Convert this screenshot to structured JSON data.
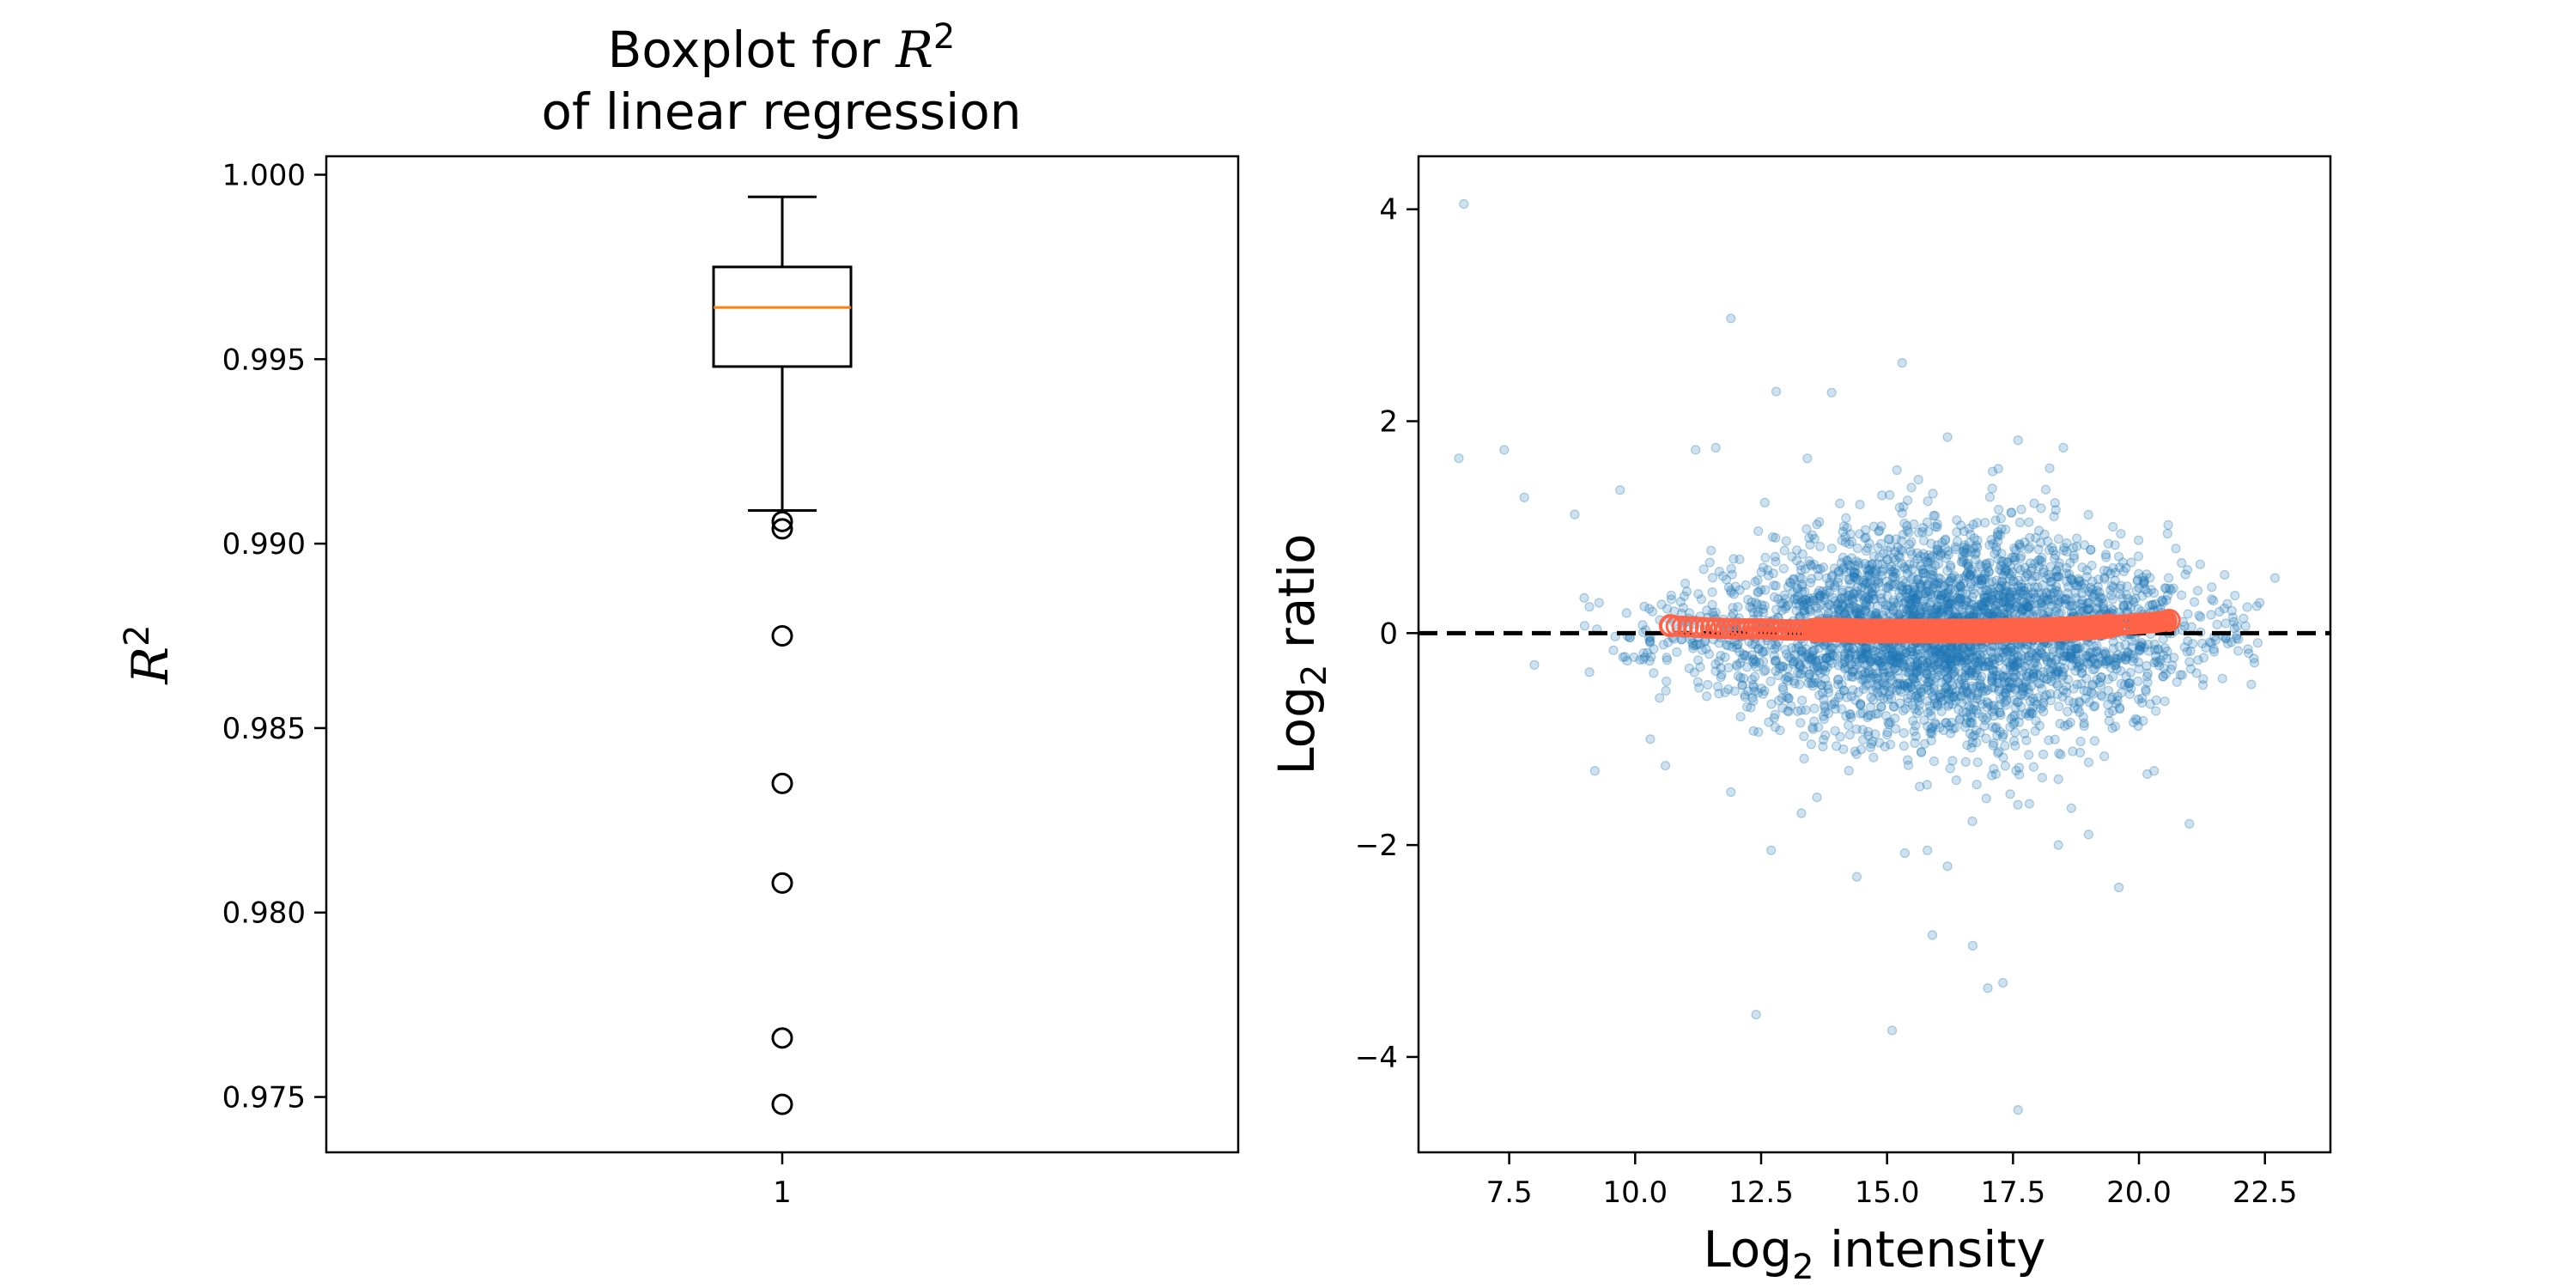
{
  "chart_data": [
    {
      "type": "box",
      "title_line1_prefix": "Boxplot for ",
      "title_line1_var": "R",
      "title_line1_sup": "2",
      "title_line2": "of linear regression",
      "ylabel_var": "R",
      "ylabel_sup": "2",
      "categories": [
        "1"
      ],
      "ylim": [
        0.9735,
        1.0005
      ],
      "yticks": [
        0.975,
        0.98,
        0.985,
        0.99,
        0.995,
        1.0
      ],
      "ytick_labels": [
        "0.975",
        "0.980",
        "0.985",
        "0.990",
        "0.995",
        "1.000"
      ],
      "box": {
        "whisker_low": 0.9909,
        "q1": 0.9948,
        "median": 0.9964,
        "q3": 0.9975,
        "whisker_high": 0.9994
      },
      "fliers": [
        0.9906,
        0.9904,
        0.9875,
        0.9835,
        0.9808,
        0.9766,
        0.9748
      ],
      "colors": {
        "box": "#000000",
        "median": "#ff7f0e"
      }
    },
    {
      "type": "scatter",
      "xlabel_prefix": "Log",
      "xlabel_sub": "2",
      "xlabel_suffix": " intensity",
      "ylabel_prefix": "Log",
      "ylabel_sub": "2",
      "ylabel_suffix": " ratio",
      "xlim": [
        5.7,
        23.8
      ],
      "ylim": [
        -4.9,
        4.5
      ],
      "xticks": [
        7.5,
        10.0,
        12.5,
        15.0,
        17.5,
        20.0,
        22.5
      ],
      "xtick_labels": [
        "7.5",
        "10.0",
        "12.5",
        "15.0",
        "17.5",
        "20.0",
        "22.5"
      ],
      "yticks": [
        -4,
        -2,
        0,
        2,
        4
      ],
      "ytick_labels": [
        "−4",
        "−2",
        "0",
        "2",
        "4"
      ],
      "reference_line": {
        "y": 0,
        "style": "dashed",
        "color": "#000000"
      },
      "colors": {
        "points": "#1f77b4",
        "trend": "#ff6347"
      },
      "outlier_points": [
        [
          6.6,
          4.05
        ],
        [
          11.9,
          2.97
        ],
        [
          15.3,
          2.55
        ],
        [
          12.8,
          2.28
        ],
        [
          13.9,
          2.27
        ],
        [
          6.5,
          1.65
        ],
        [
          7.4,
          1.73
        ],
        [
          11.2,
          1.73
        ],
        [
          11.6,
          1.75
        ],
        [
          17.6,
          1.82
        ],
        [
          18.5,
          1.75
        ],
        [
          16.2,
          1.85
        ],
        [
          7.8,
          1.28
        ],
        [
          9.7,
          1.35
        ],
        [
          8.8,
          1.12
        ],
        [
          21.7,
          0.55
        ],
        [
          22.7,
          0.52
        ],
        [
          8.0,
          -0.3
        ],
        [
          9.2,
          -1.3
        ],
        [
          10.6,
          -1.25
        ],
        [
          12.7,
          -2.05
        ],
        [
          15.8,
          -2.05
        ],
        [
          16.2,
          -2.2
        ],
        [
          18.4,
          -2.0
        ],
        [
          19.6,
          -2.4
        ],
        [
          21.0,
          -1.8
        ],
        [
          14.4,
          -2.3
        ],
        [
          15.9,
          -2.85
        ],
        [
          16.7,
          -2.95
        ],
        [
          17.0,
          -3.35
        ],
        [
          17.3,
          -3.3
        ],
        [
          12.4,
          -3.6
        ],
        [
          15.1,
          -3.75
        ],
        [
          17.6,
          -4.5
        ],
        [
          10.3,
          -1.0
        ],
        [
          19.0,
          -1.9
        ],
        [
          13.3,
          -1.7
        ],
        [
          20.3,
          -1.3
        ],
        [
          11.9,
          -1.5
        ],
        [
          14.9,
          1.3
        ]
      ],
      "bulk": {
        "count": 3500,
        "x_mean": 16.2,
        "x_sd": 2.4,
        "x_range": [
          8.8,
          22.4
        ],
        "y_sd_center": 0.52,
        "y_sd_edge": 0.2
      },
      "trend_points": [
        [
          10.7,
          0.07
        ],
        [
          11.4,
          0.05
        ],
        [
          12.0,
          0.04
        ],
        [
          12.5,
          0.04
        ],
        [
          13.0,
          0.03
        ],
        [
          13.5,
          0.03
        ],
        [
          14.0,
          0.03
        ],
        [
          14.5,
          0.02
        ],
        [
          15.0,
          0.02
        ],
        [
          15.5,
          0.02
        ],
        [
          16.0,
          0.02
        ],
        [
          16.5,
          0.02
        ],
        [
          17.0,
          0.02
        ],
        [
          17.5,
          0.03
        ],
        [
          18.0,
          0.03
        ],
        [
          18.5,
          0.04
        ],
        [
          19.0,
          0.05
        ],
        [
          19.5,
          0.07
        ],
        [
          20.0,
          0.09
        ],
        [
          20.3,
          0.1
        ],
        [
          20.6,
          0.12
        ]
      ]
    }
  ]
}
